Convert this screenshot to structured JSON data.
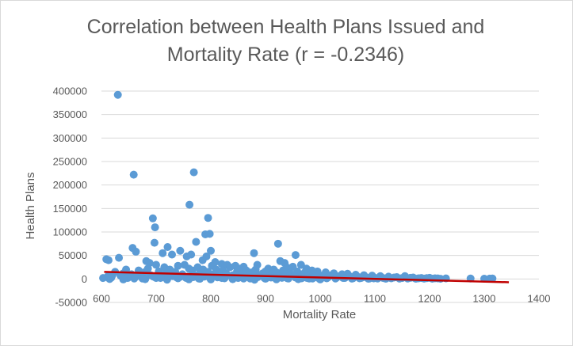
{
  "colors": {
    "points": "#5b9bd5",
    "trend": "#c00000",
    "grid": "#d9d9d9",
    "text": "#595959"
  },
  "chart_data": {
    "type": "scatter",
    "title_line1": "Correlation between Health Plans Issued and",
    "title_line2": "Mortality Rate (r = -0.2346)",
    "xlabel": "Mortality Rate",
    "ylabel": "Health Plans",
    "xlim": [
      600,
      1400
    ],
    "ylim": [
      -50000,
      400000
    ],
    "x_ticks": [
      "600",
      "700",
      "800",
      "900",
      "1000",
      "1100",
      "1200",
      "1300",
      "1400"
    ],
    "y_ticks": [
      "-50000",
      "0",
      "50000",
      "100000",
      "150000",
      "200000",
      "250000",
      "300000",
      "350000",
      "400000"
    ],
    "grid": true,
    "legend": "none",
    "trendline": {
      "x": [
        605,
        1345
      ],
      "y": [
        15000,
        -7000
      ]
    },
    "points": [
      [
        630,
        392000
      ],
      [
        659,
        222000
      ],
      [
        769,
        227000
      ],
      [
        761,
        158000
      ],
      [
        694,
        129000
      ],
      [
        795,
        130000
      ],
      [
        698,
        110000
      ],
      [
        790,
        95000
      ],
      [
        798,
        96000
      ],
      [
        697,
        77000
      ],
      [
        773,
        79000
      ],
      [
        744,
        60000
      ],
      [
        800,
        60000
      ],
      [
        923,
        75000
      ],
      [
        879,
        55000
      ],
      [
        657,
        66000
      ],
      [
        663,
        58000
      ],
      [
        609,
        42000
      ],
      [
        613,
        40000
      ],
      [
        632,
        45000
      ],
      [
        682,
        38000
      ],
      [
        688,
        34000
      ],
      [
        712,
        55000
      ],
      [
        721,
        68000
      ],
      [
        729,
        52000
      ],
      [
        756,
        48000
      ],
      [
        792,
        48000
      ],
      [
        764,
        52000
      ],
      [
        785,
        40000
      ],
      [
        808,
        36000
      ],
      [
        955,
        51000
      ],
      [
        927,
        38000
      ],
      [
        935,
        34000
      ],
      [
        965,
        30000
      ],
      [
        820,
        32000
      ],
      [
        830,
        30000
      ],
      [
        845,
        28000
      ],
      [
        860,
        26000
      ],
      [
        885,
        30000
      ],
      [
        700,
        30000
      ],
      [
        740,
        28000
      ],
      [
        760,
        22000
      ],
      [
        905,
        22000
      ],
      [
        915,
        20000
      ],
      [
        940,
        24000
      ],
      [
        950,
        26000
      ],
      [
        975,
        22000
      ],
      [
        985,
        18000
      ],
      [
        995,
        16000
      ],
      [
        1010,
        14000
      ],
      [
        1025,
        12000
      ],
      [
        1040,
        10000
      ],
      [
        1050,
        11000
      ],
      [
        1065,
        9000
      ],
      [
        1080,
        8000
      ],
      [
        1095,
        7000
      ],
      [
        1110,
        6000
      ],
      [
        1125,
        5000
      ],
      [
        1140,
        4000
      ],
      [
        1155,
        6000
      ],
      [
        1170,
        3000
      ],
      [
        1185,
        2000
      ],
      [
        1200,
        2500
      ],
      [
        1210,
        1500
      ],
      [
        1230,
        1200
      ],
      [
        1275,
        1000
      ],
      [
        1300,
        500
      ],
      [
        1310,
        800
      ],
      [
        1315,
        1000
      ],
      [
        603,
        2000
      ],
      [
        615,
        0
      ],
      [
        620,
        8000
      ],
      [
        625,
        15000
      ],
      [
        640,
        12000
      ],
      [
        645,
        20000
      ],
      [
        650,
        5000
      ],
      [
        655,
        10000
      ],
      [
        668,
        18000
      ],
      [
        672,
        6000
      ],
      [
        678,
        14000
      ],
      [
        685,
        22000
      ],
      [
        690,
        8000
      ],
      [
        705,
        16000
      ],
      [
        710,
        4000
      ],
      [
        715,
        25000
      ],
      [
        718,
        12000
      ],
      [
        725,
        20000
      ],
      [
        730,
        6000
      ],
      [
        735,
        15000
      ],
      [
        748,
        10000
      ],
      [
        752,
        30000
      ],
      [
        758,
        5000
      ],
      [
        766,
        18000
      ],
      [
        770,
        8000
      ],
      [
        776,
        25000
      ],
      [
        780,
        12000
      ],
      [
        786,
        20000
      ],
      [
        795,
        15000
      ],
      [
        802,
        28000
      ],
      [
        805,
        10000
      ],
      [
        810,
        20000
      ],
      [
        815,
        6000
      ],
      [
        822,
        18000
      ],
      [
        828,
        12000
      ],
      [
        835,
        25000
      ],
      [
        840,
        8000
      ],
      [
        848,
        16000
      ],
      [
        852,
        22000
      ],
      [
        858,
        10000
      ],
      [
        865,
        18000
      ],
      [
        870,
        6000
      ],
      [
        875,
        14000
      ],
      [
        882,
        20000
      ],
      [
        888,
        8000
      ],
      [
        895,
        12000
      ],
      [
        900,
        16000
      ],
      [
        908,
        6000
      ],
      [
        912,
        10000
      ],
      [
        920,
        14000
      ],
      [
        925,
        5000
      ],
      [
        932,
        18000
      ],
      [
        938,
        8000
      ],
      [
        945,
        12000
      ],
      [
        952,
        6000
      ],
      [
        958,
        16000
      ],
      [
        962,
        4000
      ],
      [
        968,
        10000
      ],
      [
        972,
        14000
      ],
      [
        978,
        8000
      ],
      [
        982,
        3000
      ],
      [
        988,
        12000
      ],
      [
        992,
        6000
      ],
      [
        998,
        9000
      ],
      [
        1003,
        2000
      ],
      [
        1008,
        7000
      ],
      [
        1015,
        4000
      ],
      [
        1020,
        8000
      ],
      [
        1030,
        3000
      ],
      [
        1035,
        6000
      ],
      [
        1045,
        2000
      ],
      [
        1055,
        5000
      ],
      [
        1060,
        1500
      ],
      [
        1070,
        4000
      ],
      [
        1075,
        2000
      ],
      [
        1085,
        3000
      ],
      [
        1090,
        1000
      ],
      [
        1100,
        2500
      ],
      [
        1105,
        1000
      ],
      [
        1115,
        2000
      ],
      [
        1120,
        500
      ],
      [
        1130,
        1500
      ],
      [
        1135,
        3000
      ],
      [
        1145,
        800
      ],
      [
        1150,
        2000
      ],
      [
        1160,
        1000
      ],
      [
        1165,
        2500
      ],
      [
        1175,
        500
      ],
      [
        1180,
        1500
      ],
      [
        1190,
        800
      ],
      [
        1195,
        1800
      ],
      [
        1205,
        600
      ],
      [
        1215,
        1200
      ],
      [
        1220,
        400
      ],
      [
        640,
        -1000
      ],
      [
        660,
        1000
      ],
      [
        680,
        -500
      ],
      [
        700,
        2000
      ],
      [
        720,
        -1500
      ],
      [
        740,
        1500
      ],
      [
        760,
        -800
      ],
      [
        780,
        500
      ],
      [
        800,
        -1000
      ],
      [
        820,
        2000
      ],
      [
        840,
        -500
      ],
      [
        860,
        1000
      ],
      [
        880,
        -1500
      ],
      [
        900,
        500
      ],
      [
        920,
        -800
      ],
      [
        940,
        1500
      ],
      [
        960,
        -500
      ],
      [
        980,
        1000
      ],
      [
        1000,
        -1000
      ],
      [
        612,
        6000
      ],
      [
        618,
        3000
      ],
      [
        635,
        7000
      ],
      [
        648,
        2000
      ],
      [
        662,
        4000
      ],
      [
        675,
        1000
      ],
      [
        695,
        5000
      ],
      [
        708,
        2000
      ],
      [
        722,
        6000
      ],
      [
        738,
        3000
      ],
      [
        745,
        5000
      ],
      [
        755,
        2000
      ],
      [
        768,
        4000
      ],
      [
        778,
        1000
      ],
      [
        788,
        5000
      ],
      [
        798,
        2500
      ],
      [
        812,
        3500
      ],
      [
        825,
        1500
      ],
      [
        838,
        4500
      ],
      [
        850,
        2000
      ],
      [
        862,
        3000
      ],
      [
        872,
        1000
      ],
      [
        886,
        4000
      ],
      [
        898,
        2000
      ],
      [
        910,
        3000
      ],
      [
        918,
        1500
      ],
      [
        930,
        2500
      ],
      [
        942,
        1000
      ],
      [
        955,
        3000
      ],
      [
        966,
        1500
      ],
      [
        976,
        2000
      ],
      [
        986,
        1000
      ],
      [
        996,
        2500
      ],
      [
        1012,
        1500
      ],
      [
        1028,
        1000
      ],
      [
        1042,
        2000
      ],
      [
        1058,
        800
      ],
      [
        1072,
        1500
      ],
      [
        1088,
        600
      ],
      [
        1098,
        1200
      ]
    ]
  }
}
